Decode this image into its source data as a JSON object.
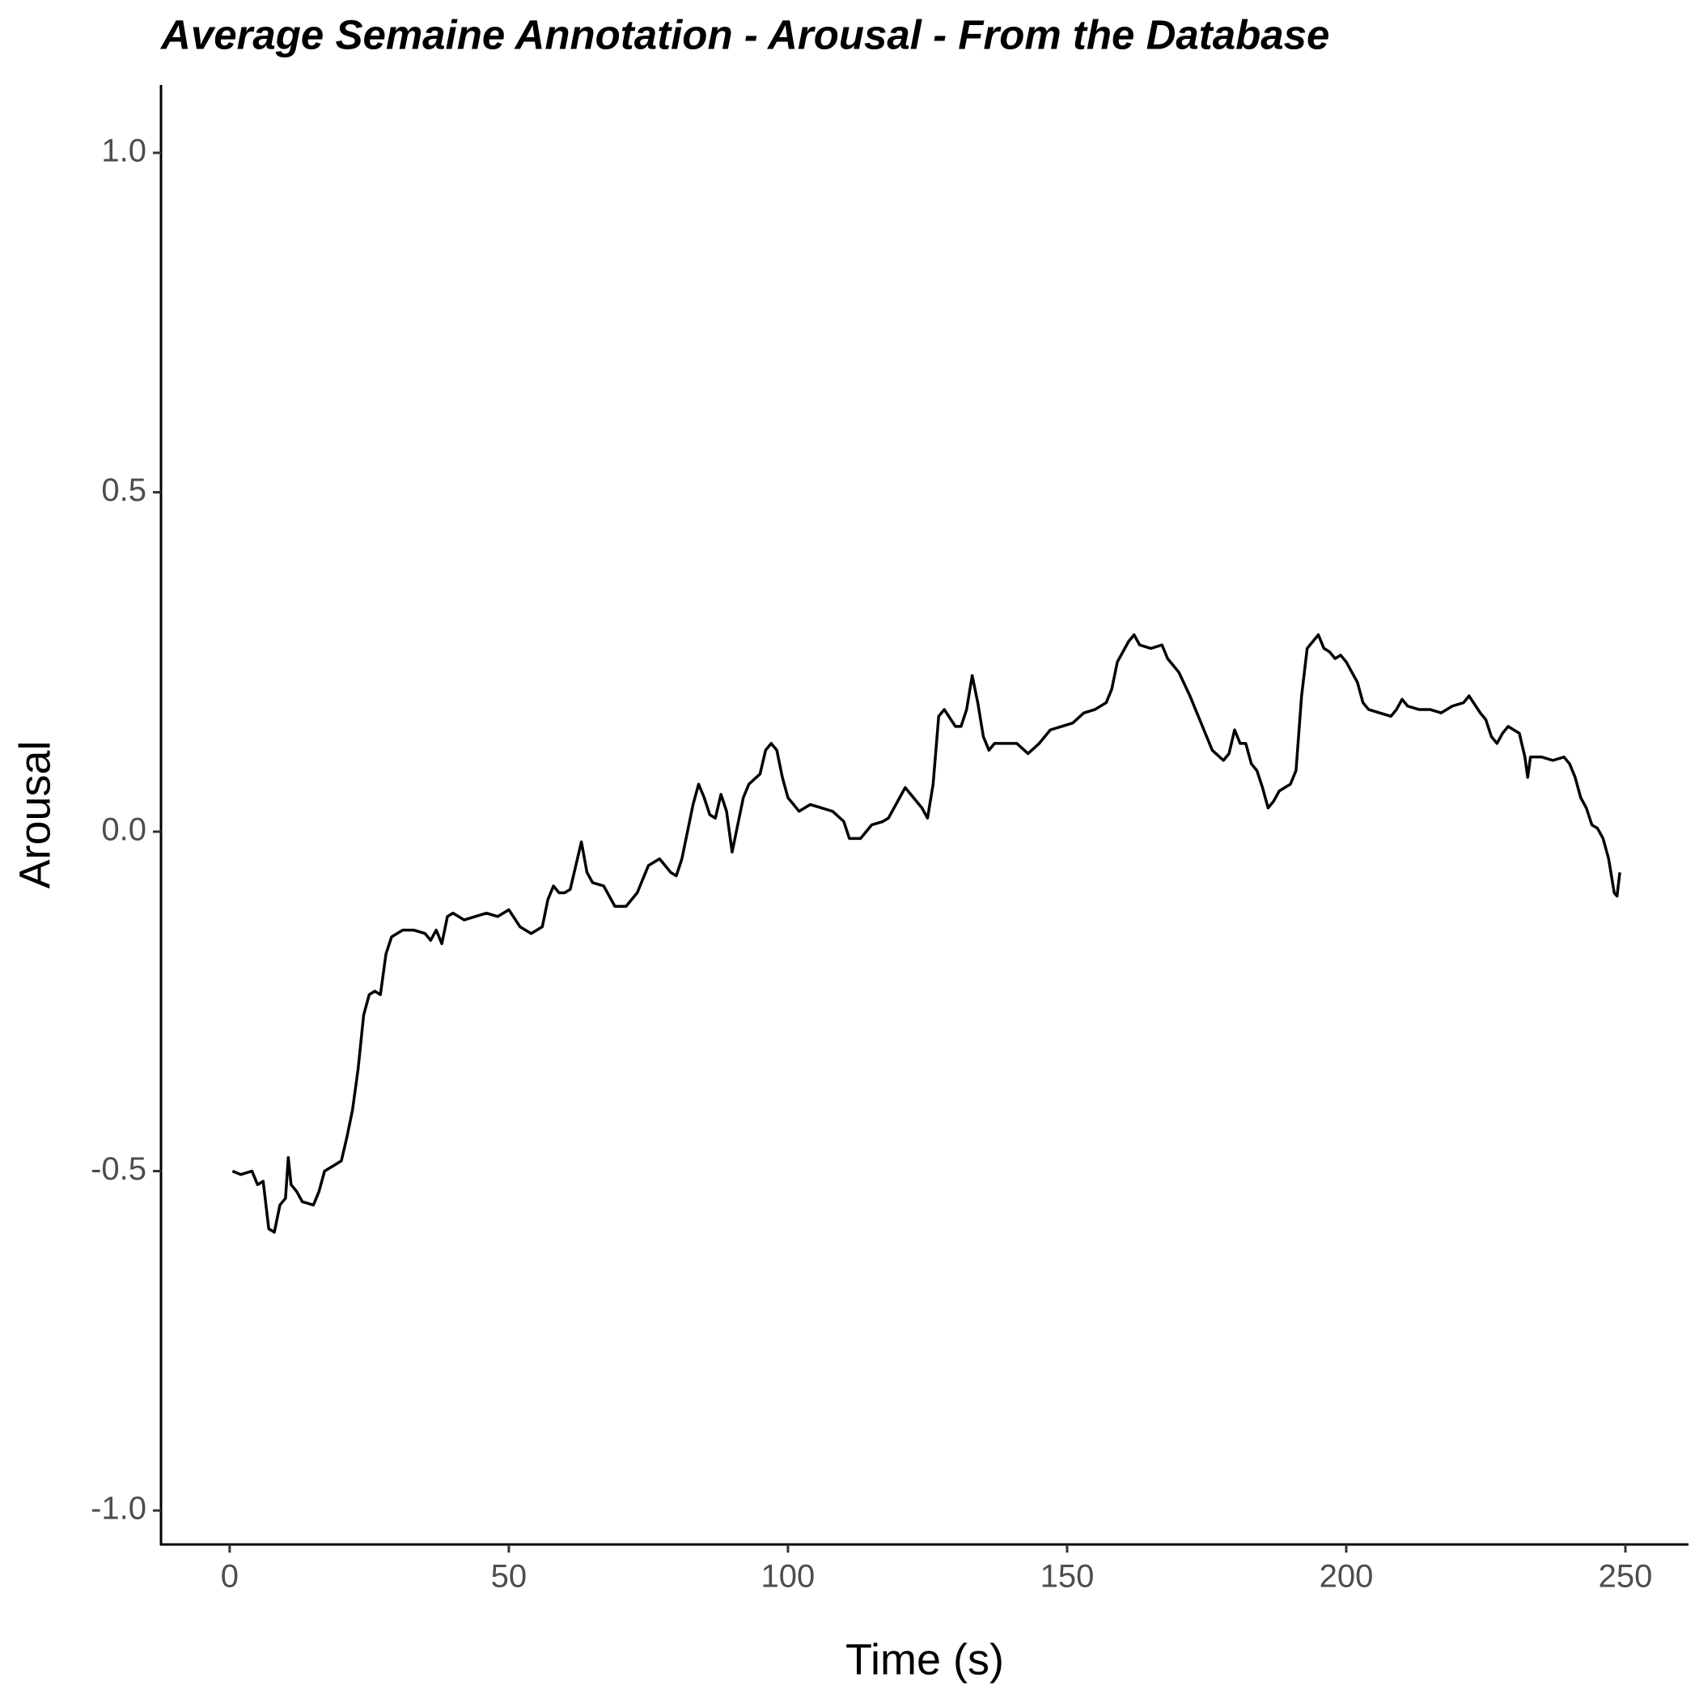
{
  "chart_data": {
    "type": "line",
    "title": "Average Semaine Annotation - Arousal - From the Database",
    "x_label": "Time (s)",
    "y_label": "Arousal",
    "xlim": [
      -12.3,
      261.3
    ],
    "ylim": [
      -1.05,
      1.1
    ],
    "xticks": [
      0,
      50,
      100,
      150,
      200,
      250
    ],
    "yticks": [
      {
        "value": -1,
        "label": "-1.0"
      },
      -0.5,
      {
        "value": 0,
        "label": "0.0"
      },
      0.5,
      {
        "value": 1,
        "label": "1.0"
      }
    ],
    "grid": false,
    "x": [
      0.5,
      2,
      4,
      5,
      6,
      7,
      8,
      9,
      10,
      10.5,
      11,
      12,
      13,
      15,
      16,
      17,
      19,
      20,
      21,
      22,
      23,
      24,
      25,
      26,
      27,
      28,
      29,
      31,
      33,
      35,
      36,
      37,
      38,
      39,
      40,
      42,
      44,
      46,
      48,
      50,
      52,
      54,
      56,
      57,
      58,
      59,
      60,
      61,
      62,
      63,
      64,
      65,
      67,
      69,
      71,
      73,
      75,
      77,
      79,
      80,
      81,
      82,
      83,
      84,
      85,
      86,
      87,
      88,
      89,
      90,
      91,
      92,
      93,
      95,
      96,
      97,
      98,
      99,
      100,
      101,
      102,
      104,
      106,
      108,
      110,
      111,
      113,
      115,
      117,
      118,
      120,
      121,
      122,
      124,
      125,
      126,
      127,
      128,
      130,
      131,
      132,
      133,
      134,
      135,
      136,
      137,
      139,
      141,
      143,
      145,
      147,
      149,
      151,
      153,
      155,
      157,
      158,
      159,
      160,
      161,
      162,
      163,
      165,
      167,
      168,
      170,
      172,
      174,
      176,
      178,
      179,
      180,
      181,
      182,
      183,
      184,
      185,
      186,
      187,
      188,
      190,
      191,
      192,
      193,
      194,
      195,
      196,
      197,
      198,
      199,
      200,
      202,
      203,
      204,
      206,
      208,
      209,
      210,
      211,
      213,
      215,
      217,
      219,
      221,
      222,
      224,
      225,
      226,
      227,
      228,
      229,
      230,
      231,
      232,
      232.5,
      233,
      235,
      237,
      239,
      240,
      241,
      242,
      243,
      244,
      245,
      246,
      247,
      248,
      248.5,
      249
    ],
    "series": [
      {
        "name": "Arousal",
        "color": "#000000",
        "values": [
          -0.5,
          -0.505,
          -0.5,
          -0.52,
          -0.515,
          -0.585,
          -0.59,
          -0.55,
          -0.54,
          -0.48,
          -0.52,
          -0.53,
          -0.545,
          -0.55,
          -0.53,
          -0.5,
          -0.49,
          -0.485,
          -0.45,
          -0.41,
          -0.35,
          -0.27,
          -0.24,
          -0.235,
          -0.24,
          -0.18,
          -0.155,
          -0.145,
          -0.145,
          -0.15,
          -0.16,
          -0.145,
          -0.165,
          -0.125,
          -0.12,
          -0.13,
          -0.125,
          -0.12,
          -0.125,
          -0.115,
          -0.14,
          -0.15,
          -0.14,
          -0.1,
          -0.08,
          -0.09,
          -0.09,
          -0.085,
          -0.05,
          -0.015,
          -0.06,
          -0.075,
          -0.08,
          -0.11,
          -0.11,
          -0.09,
          -0.05,
          -0.04,
          -0.06,
          -0.065,
          -0.04,
          0,
          0.04,
          0.07,
          0.05,
          0.025,
          0.02,
          0.055,
          0.03,
          -0.03,
          0.01,
          0.05,
          0.07,
          0.085,
          0.12,
          0.13,
          0.12,
          0.08,
          0.05,
          0.04,
          0.03,
          0.04,
          0.035,
          0.03,
          0.015,
          -0.01,
          -0.01,
          0.01,
          0.015,
          0.02,
          0.05,
          0.065,
          0.055,
          0.035,
          0.02,
          0.07,
          0.17,
          0.18,
          0.155,
          0.155,
          0.18,
          0.23,
          0.19,
          0.14,
          0.12,
          0.13,
          0.13,
          0.13,
          0.115,
          0.13,
          0.15,
          0.155,
          0.16,
          0.175,
          0.18,
          0.19,
          0.21,
          0.25,
          0.265,
          0.28,
          0.29,
          0.275,
          0.27,
          0.275,
          0.255,
          0.235,
          0.2,
          0.16,
          0.12,
          0.105,
          0.115,
          0.15,
          0.13,
          0.13,
          0.1,
          0.09,
          0.065,
          0.035,
          0.045,
          0.06,
          0.07,
          0.09,
          0.2,
          0.27,
          0.28,
          0.29,
          0.27,
          0.265,
          0.255,
          0.26,
          0.25,
          0.22,
          0.19,
          0.18,
          0.175,
          0.17,
          0.18,
          0.195,
          0.185,
          0.18,
          0.18,
          0.175,
          0.185,
          0.19,
          0.2,
          0.175,
          0.165,
          0.14,
          0.13,
          0.145,
          0.155,
          0.15,
          0.145,
          0.11,
          0.08,
          0.11,
          0.11,
          0.105,
          0.11,
          0.1,
          0.08,
          0.05,
          0.035,
          0.01,
          0.005,
          -0.01,
          -0.04,
          -0.09,
          -0.095,
          -0.06
        ]
      }
    ]
  }
}
